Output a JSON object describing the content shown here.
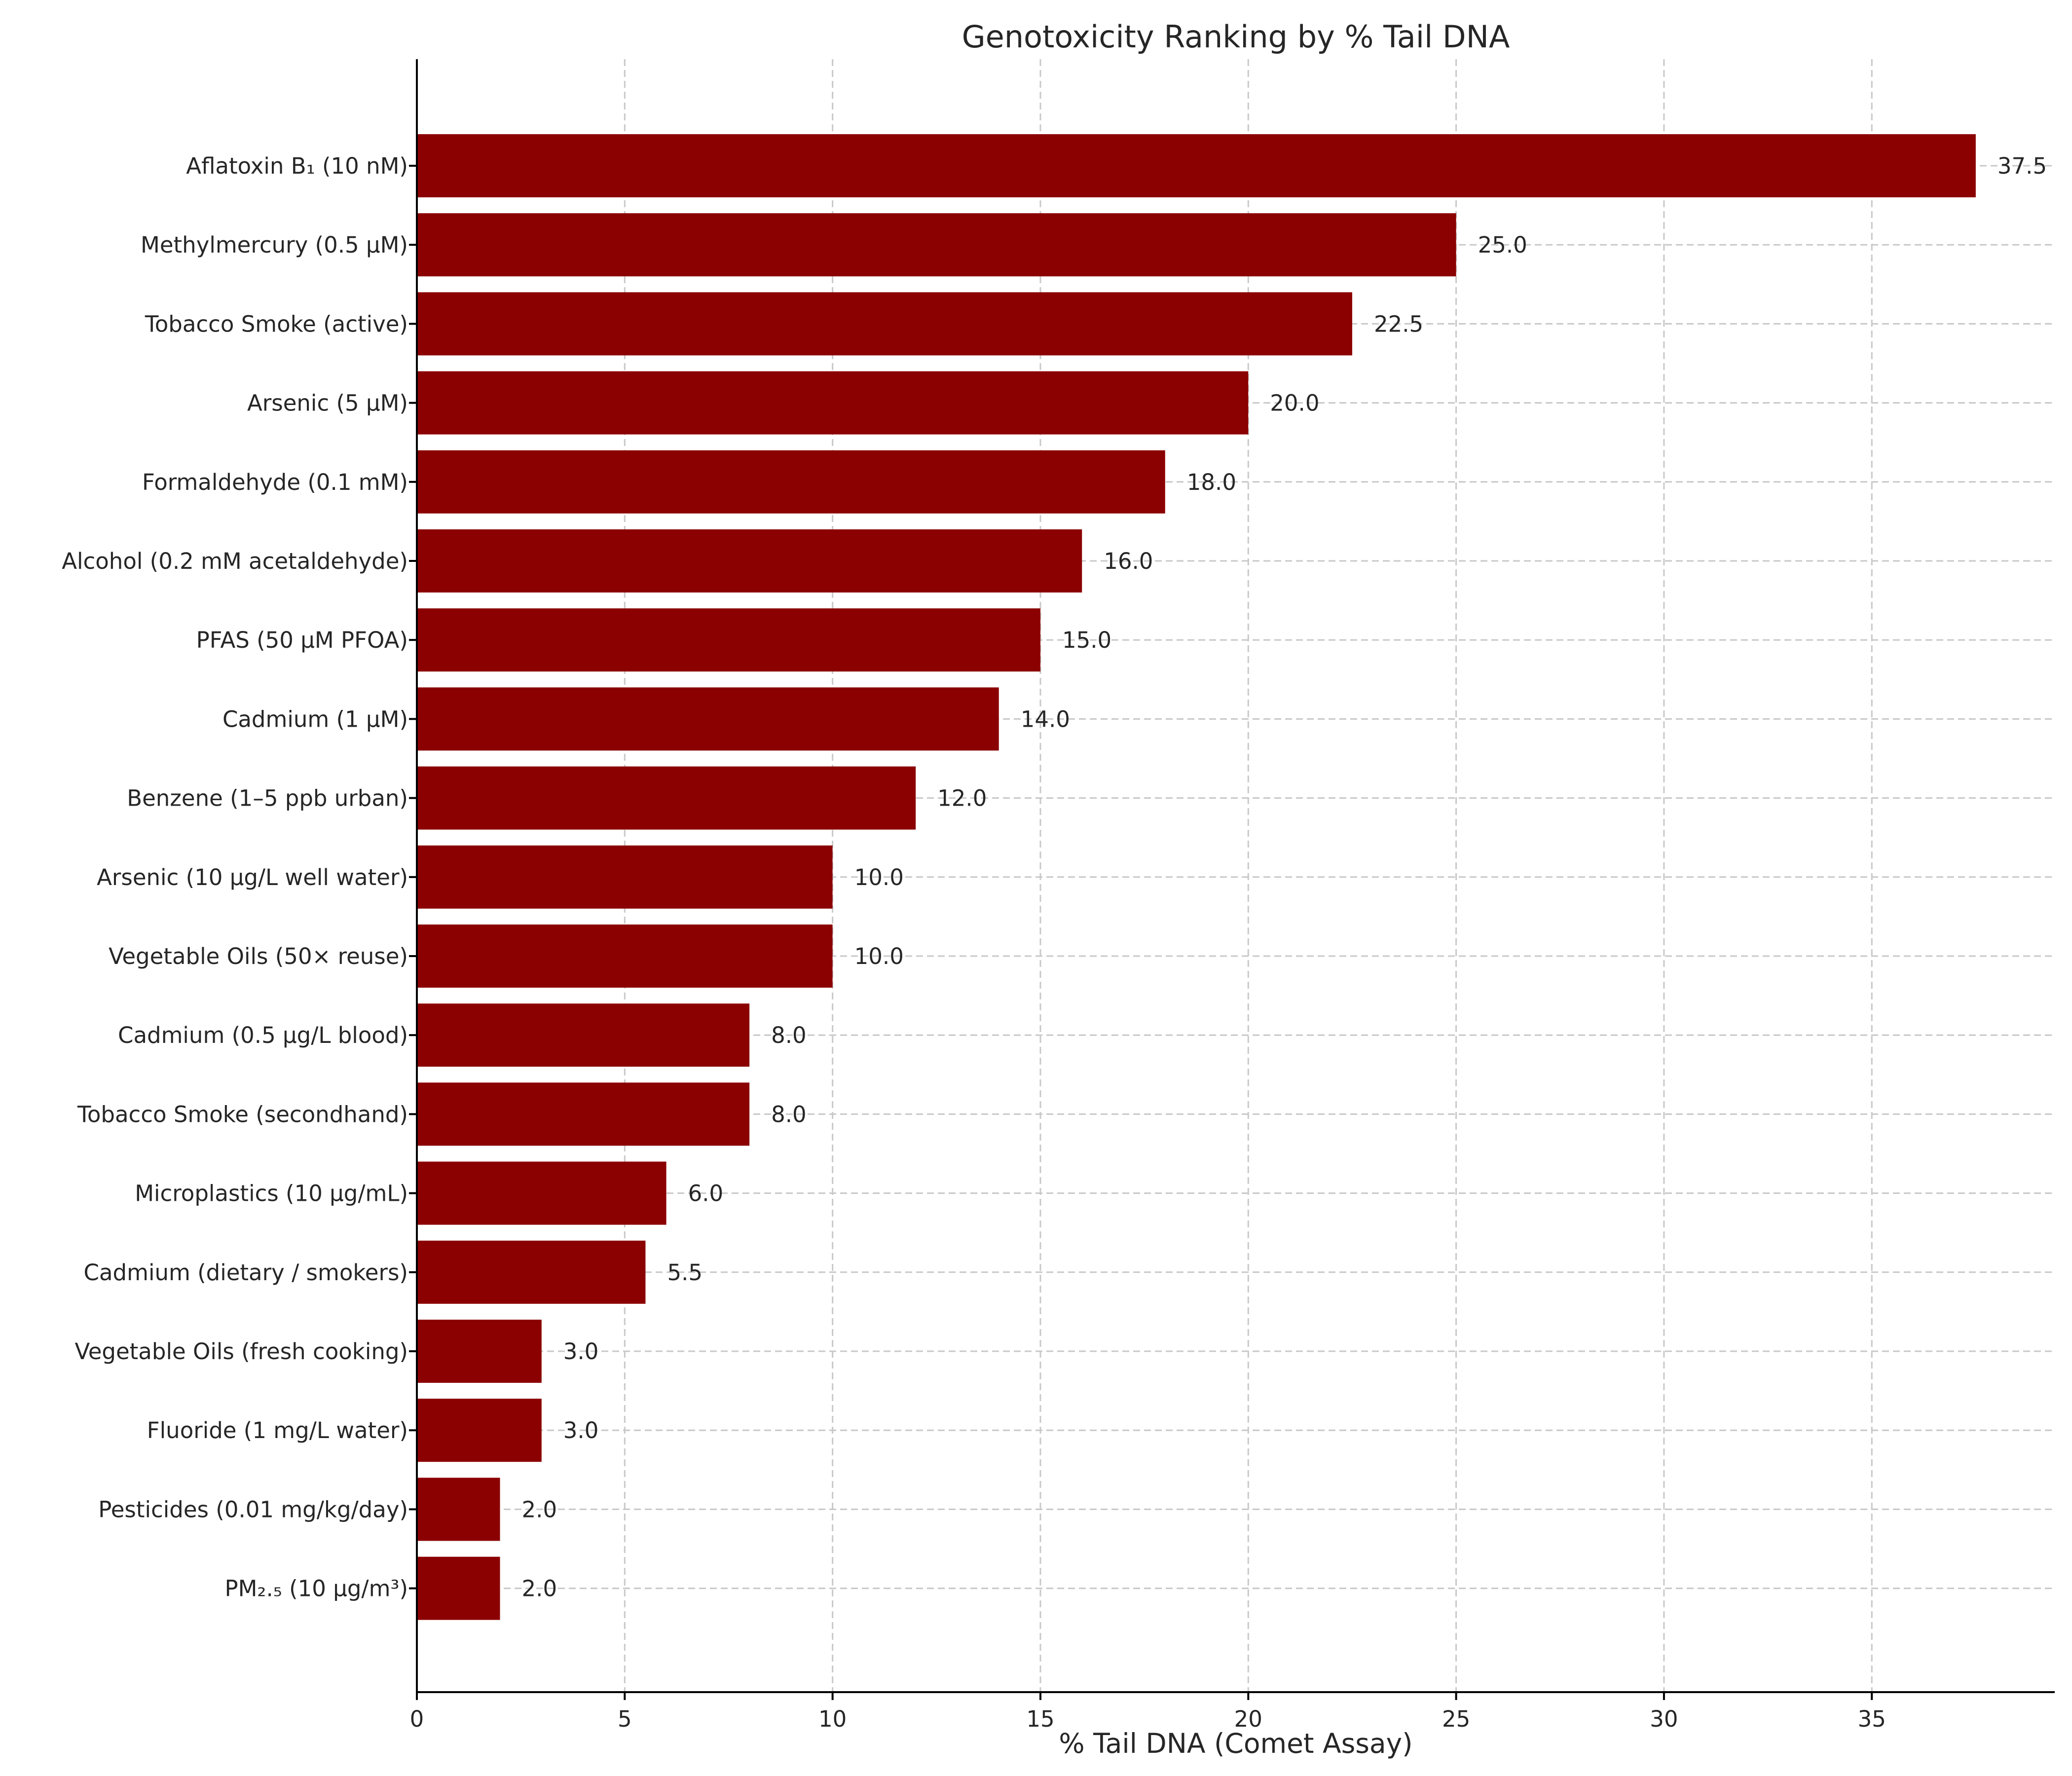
{
  "chart_data": {
    "type": "bar",
    "orientation": "horizontal",
    "title": "Genotoxicity Ranking by % Tail DNA",
    "xlabel": "% Tail DNA (Comet Assay)",
    "ylabel": "",
    "xlim": [
      0,
      39.4
    ],
    "xticks": [
      0,
      5,
      10,
      15,
      20,
      25,
      30,
      35
    ],
    "grid": true,
    "bar_color": "#8b0000",
    "value_label_format": "one decimal",
    "categories": [
      "Aflatoxin B₁ (10 nM)",
      "Methylmercury (0.5 µM)",
      "Tobacco Smoke (active)",
      "Arsenic (5 µM)",
      "Formaldehyde (0.1 mM)",
      "Alcohol (0.2 mM acetaldehyde)",
      "PFAS (50 µM PFOA)",
      "Cadmium (1 µM)",
      "Benzene (1–5 ppb urban)",
      "Arsenic (10 µg/L well water)",
      "Vegetable Oils (50× reuse)",
      "Cadmium (0.5 µg/L blood)",
      "Tobacco Smoke (secondhand)",
      "Microplastics (10 µg/mL)",
      "Cadmium (dietary / smokers)",
      "Vegetable Oils (fresh cooking)",
      "Fluoride (1 mg/L water)",
      "Pesticides (0.01 mg/kg/day)",
      "PM₂.₅ (10 µg/m³)"
    ],
    "values": [
      37.5,
      25.0,
      22.5,
      20.0,
      18.0,
      16.0,
      15.0,
      14.0,
      12.0,
      10.0,
      10.0,
      8.0,
      8.0,
      6.0,
      5.5,
      3.0,
      3.0,
      2.0,
      2.0
    ]
  }
}
